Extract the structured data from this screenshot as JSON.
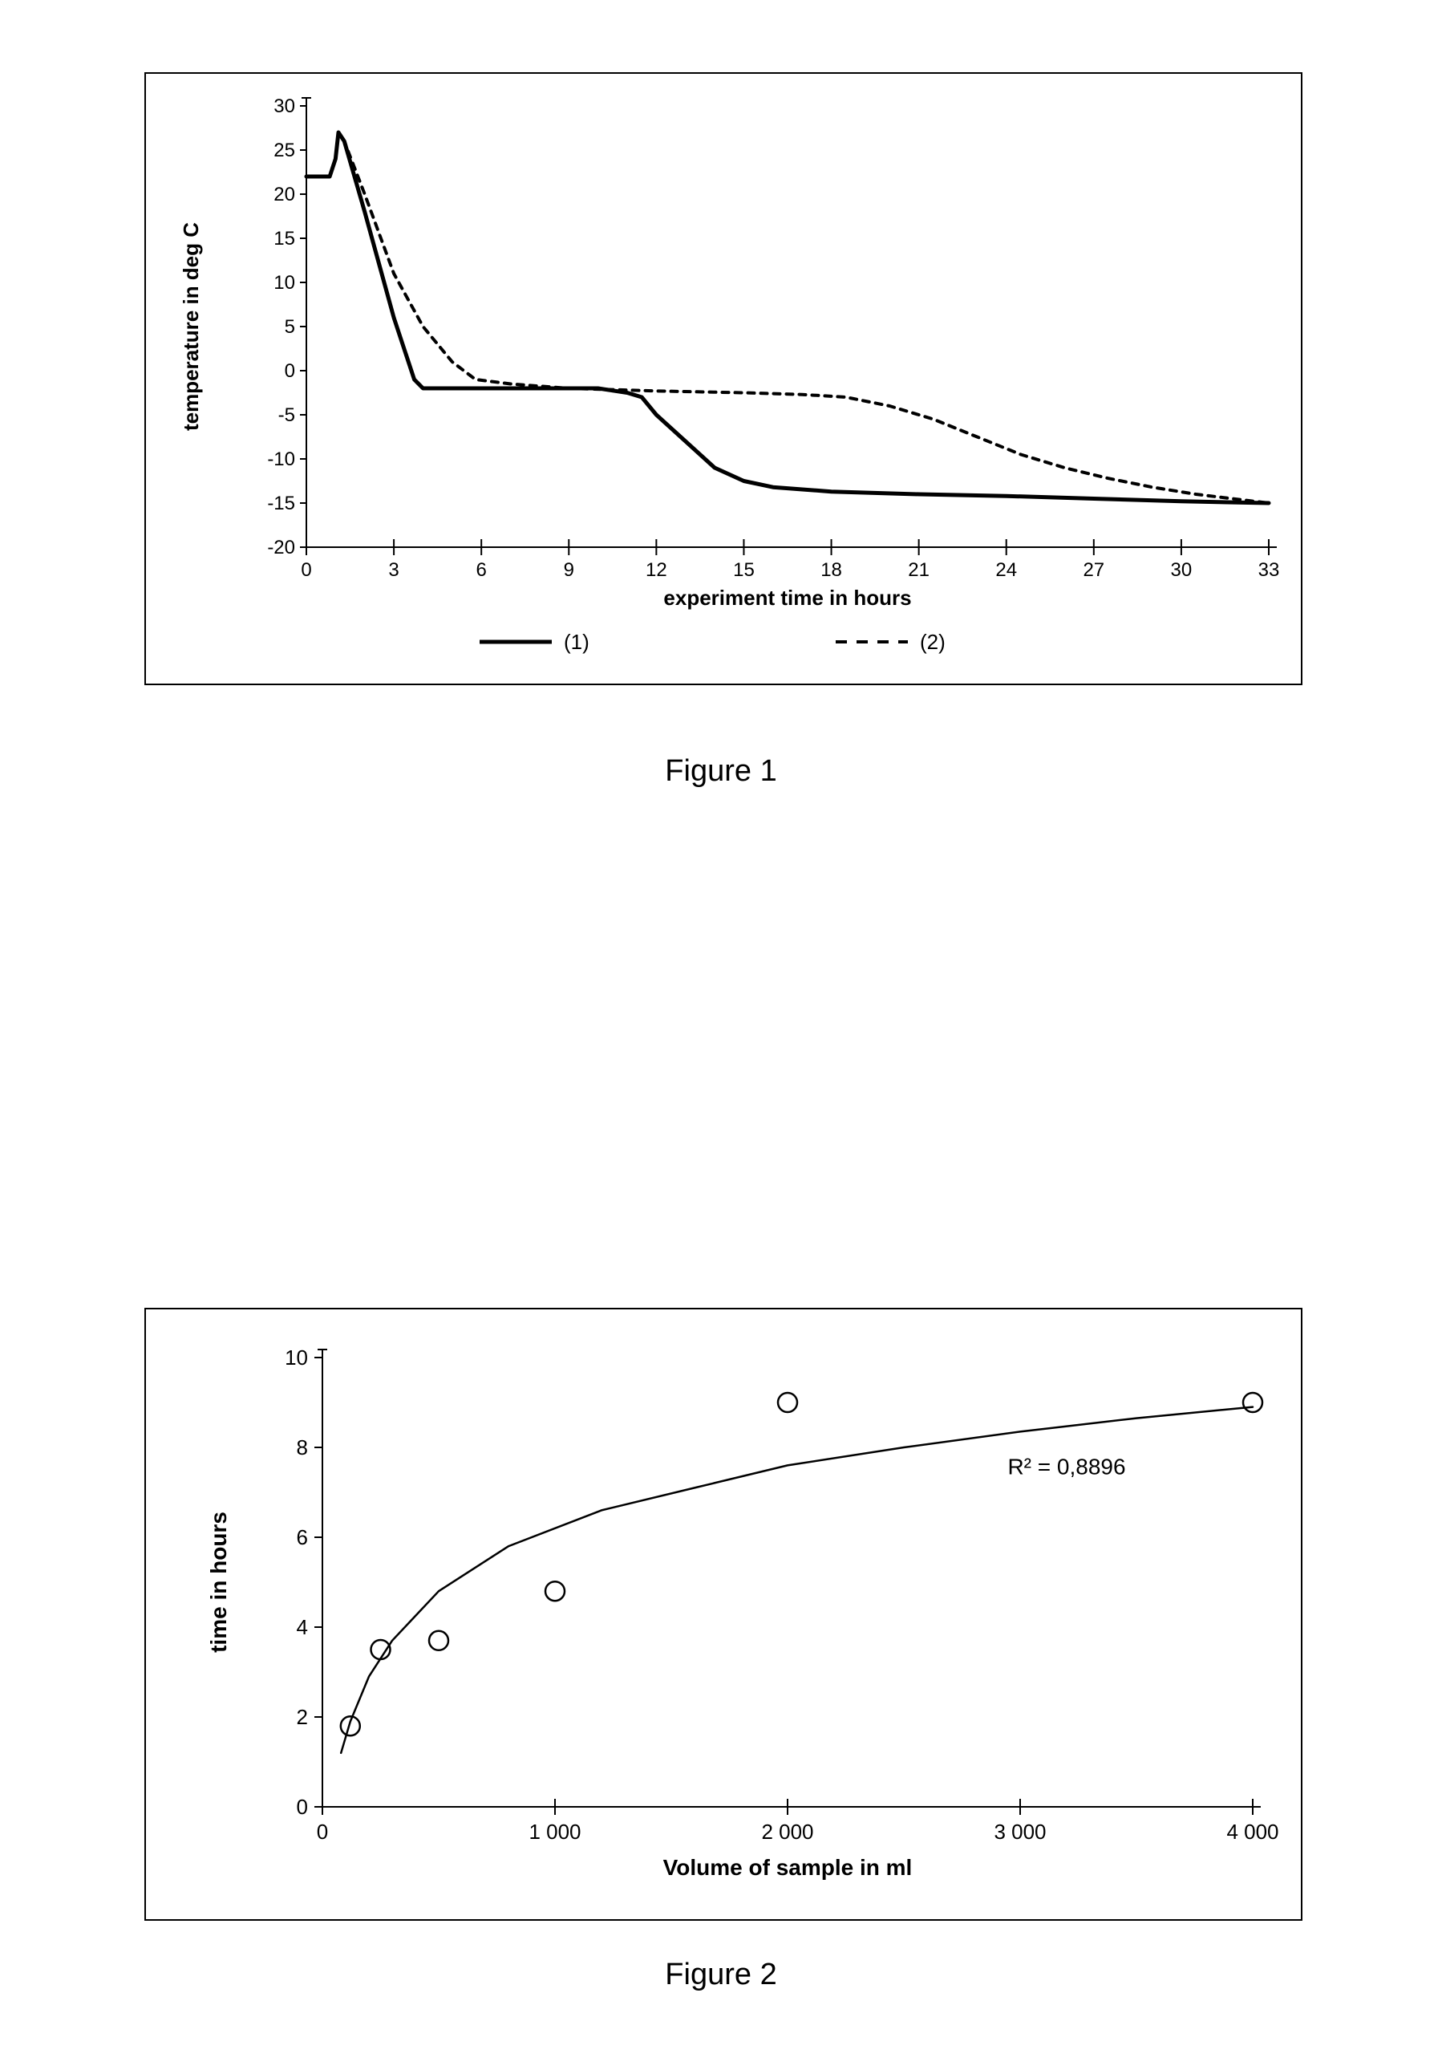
{
  "figure1": {
    "caption": "Figure 1",
    "type": "line",
    "background_color": "#ffffff",
    "border_color": "#000000",
    "xlabel": "experiment time in hours",
    "ylabel": "temperature in deg C",
    "label_fontsize": 26,
    "tick_fontsize": 24,
    "xlim": [
      0,
      33
    ],
    "ylim": [
      -20,
      30
    ],
    "xtick_step": 3,
    "ytick_step": 5,
    "series": [
      {
        "name": "(1)",
        "dash": "solid",
        "color": "#000000",
        "stroke_width": 5,
        "x": [
          0,
          0.4,
          0.8,
          1.0,
          1.1,
          1.3,
          2.0,
          3.0,
          3.7,
          4.0,
          5.0,
          6.0,
          8.0,
          10.0,
          11.0,
          11.5,
          12.0,
          13.0,
          14.0,
          15.0,
          16.0,
          18.0,
          21.0,
          24.0,
          27.0,
          30.0,
          33.0
        ],
        "y": [
          22,
          22,
          22,
          24,
          27,
          26,
          18,
          6,
          -1,
          -2,
          -2,
          -2,
          -2,
          -2,
          -2.5,
          -3,
          -5,
          -8,
          -11,
          -12.5,
          -13.2,
          -13.7,
          -14.0,
          -14.2,
          -14.5,
          -14.8,
          -15.0
        ]
      },
      {
        "name": "(2)",
        "dash": "8 8",
        "color": "#000000",
        "stroke_width": 4,
        "x": [
          0,
          0.4,
          0.8,
          1.0,
          1.1,
          1.3,
          2.0,
          3.0,
          4.0,
          5.0,
          5.8,
          7.0,
          9.0,
          12.0,
          15.0,
          17.0,
          18.5,
          20.0,
          21.5,
          23.0,
          24.5,
          26.0,
          27.5,
          29.0,
          30.5,
          32.0,
          33.0
        ],
        "y": [
          22,
          22,
          22,
          24,
          27,
          26,
          20,
          11,
          5,
          1,
          -1,
          -1.5,
          -2,
          -2.3,
          -2.5,
          -2.7,
          -3,
          -4,
          -5.5,
          -7.5,
          -9.5,
          -11,
          -12.2,
          -13.2,
          -14.0,
          -14.6,
          -15.0
        ]
      }
    ],
    "legend": {
      "items": [
        "(1)",
        "(2)"
      ],
      "fontsize": 26
    }
  },
  "figure2": {
    "caption": "Figure 2",
    "type": "scatter",
    "background_color": "#ffffff",
    "border_color": "#000000",
    "xlabel": "Volume of sample in ml",
    "ylabel": "time in hours",
    "label_fontsize": 28,
    "tick_fontsize": 26,
    "xlim": [
      0,
      4000
    ],
    "ylim": [
      0,
      10
    ],
    "xticks": [
      0,
      1000,
      2000,
      3000,
      4000
    ],
    "xtick_labels": [
      "0",
      "1 000",
      "2 000",
      "3 000",
      "4 000"
    ],
    "ytick_step": 2,
    "points": {
      "x": [
        120,
        250,
        500,
        1000,
        2000,
        4000
      ],
      "y": [
        1.8,
        3.5,
        3.7,
        4.8,
        9.0,
        9.0
      ],
      "marker_color": "#000000",
      "marker_fill": "none",
      "marker_stroke_width": 2.5,
      "marker_radius": 12
    },
    "fit": {
      "type": "log",
      "x": [
        80,
        120,
        200,
        300,
        500,
        800,
        1200,
        1600,
        2000,
        2500,
        3000,
        3500,
        4000
      ],
      "y": [
        1.2,
        1.9,
        2.9,
        3.7,
        4.8,
        5.8,
        6.6,
        7.1,
        7.6,
        8.0,
        8.35,
        8.65,
        8.9
      ],
      "color": "#000000",
      "stroke_width": 2.5
    },
    "annotation": {
      "text": "R² = 0,8896",
      "fontsize": 28,
      "x_data": 3200,
      "y_data": 7.4
    }
  }
}
